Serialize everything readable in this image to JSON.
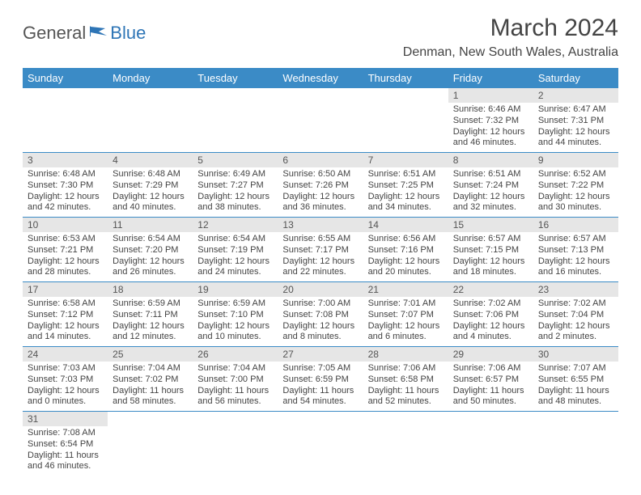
{
  "brand": {
    "part1": "General",
    "part2": "Blue"
  },
  "title": "March 2024",
  "location": "Denman, New South Wales, Australia",
  "colors": {
    "header_bg": "#3b8bc6",
    "header_text": "#ffffff",
    "daynum_bg": "#e6e6e6",
    "rule": "#3b8bc6",
    "body_text": "#444444",
    "brand_gray": "#555555",
    "brand_blue": "#2e75b6"
  },
  "day_headers": [
    "Sunday",
    "Monday",
    "Tuesday",
    "Wednesday",
    "Thursday",
    "Friday",
    "Saturday"
  ],
  "weeks": [
    [
      null,
      null,
      null,
      null,
      null,
      {
        "n": "1",
        "sr": "6:46 AM",
        "ss": "7:32 PM",
        "dl": "12 hours and 46 minutes."
      },
      {
        "n": "2",
        "sr": "6:47 AM",
        "ss": "7:31 PM",
        "dl": "12 hours and 44 minutes."
      }
    ],
    [
      {
        "n": "3",
        "sr": "6:48 AM",
        "ss": "7:30 PM",
        "dl": "12 hours and 42 minutes."
      },
      {
        "n": "4",
        "sr": "6:48 AM",
        "ss": "7:29 PM",
        "dl": "12 hours and 40 minutes."
      },
      {
        "n": "5",
        "sr": "6:49 AM",
        "ss": "7:27 PM",
        "dl": "12 hours and 38 minutes."
      },
      {
        "n": "6",
        "sr": "6:50 AM",
        "ss": "7:26 PM",
        "dl": "12 hours and 36 minutes."
      },
      {
        "n": "7",
        "sr": "6:51 AM",
        "ss": "7:25 PM",
        "dl": "12 hours and 34 minutes."
      },
      {
        "n": "8",
        "sr": "6:51 AM",
        "ss": "7:24 PM",
        "dl": "12 hours and 32 minutes."
      },
      {
        "n": "9",
        "sr": "6:52 AM",
        "ss": "7:22 PM",
        "dl": "12 hours and 30 minutes."
      }
    ],
    [
      {
        "n": "10",
        "sr": "6:53 AM",
        "ss": "7:21 PM",
        "dl": "12 hours and 28 minutes."
      },
      {
        "n": "11",
        "sr": "6:54 AM",
        "ss": "7:20 PM",
        "dl": "12 hours and 26 minutes."
      },
      {
        "n": "12",
        "sr": "6:54 AM",
        "ss": "7:19 PM",
        "dl": "12 hours and 24 minutes."
      },
      {
        "n": "13",
        "sr": "6:55 AM",
        "ss": "7:17 PM",
        "dl": "12 hours and 22 minutes."
      },
      {
        "n": "14",
        "sr": "6:56 AM",
        "ss": "7:16 PM",
        "dl": "12 hours and 20 minutes."
      },
      {
        "n": "15",
        "sr": "6:57 AM",
        "ss": "7:15 PM",
        "dl": "12 hours and 18 minutes."
      },
      {
        "n": "16",
        "sr": "6:57 AM",
        "ss": "7:13 PM",
        "dl": "12 hours and 16 minutes."
      }
    ],
    [
      {
        "n": "17",
        "sr": "6:58 AM",
        "ss": "7:12 PM",
        "dl": "12 hours and 14 minutes."
      },
      {
        "n": "18",
        "sr": "6:59 AM",
        "ss": "7:11 PM",
        "dl": "12 hours and 12 minutes."
      },
      {
        "n": "19",
        "sr": "6:59 AM",
        "ss": "7:10 PM",
        "dl": "12 hours and 10 minutes."
      },
      {
        "n": "20",
        "sr": "7:00 AM",
        "ss": "7:08 PM",
        "dl": "12 hours and 8 minutes."
      },
      {
        "n": "21",
        "sr": "7:01 AM",
        "ss": "7:07 PM",
        "dl": "12 hours and 6 minutes."
      },
      {
        "n": "22",
        "sr": "7:02 AM",
        "ss": "7:06 PM",
        "dl": "12 hours and 4 minutes."
      },
      {
        "n": "23",
        "sr": "7:02 AM",
        "ss": "7:04 PM",
        "dl": "12 hours and 2 minutes."
      }
    ],
    [
      {
        "n": "24",
        "sr": "7:03 AM",
        "ss": "7:03 PM",
        "dl": "12 hours and 0 minutes."
      },
      {
        "n": "25",
        "sr": "7:04 AM",
        "ss": "7:02 PM",
        "dl": "11 hours and 58 minutes."
      },
      {
        "n": "26",
        "sr": "7:04 AM",
        "ss": "7:00 PM",
        "dl": "11 hours and 56 minutes."
      },
      {
        "n": "27",
        "sr": "7:05 AM",
        "ss": "6:59 PM",
        "dl": "11 hours and 54 minutes."
      },
      {
        "n": "28",
        "sr": "7:06 AM",
        "ss": "6:58 PM",
        "dl": "11 hours and 52 minutes."
      },
      {
        "n": "29",
        "sr": "7:06 AM",
        "ss": "6:57 PM",
        "dl": "11 hours and 50 minutes."
      },
      {
        "n": "30",
        "sr": "7:07 AM",
        "ss": "6:55 PM",
        "dl": "11 hours and 48 minutes."
      }
    ],
    [
      {
        "n": "31",
        "sr": "7:08 AM",
        "ss": "6:54 PM",
        "dl": "11 hours and 46 minutes."
      },
      null,
      null,
      null,
      null,
      null,
      null
    ]
  ],
  "labels": {
    "sunrise": "Sunrise:",
    "sunset": "Sunset:",
    "daylight": "Daylight:"
  }
}
